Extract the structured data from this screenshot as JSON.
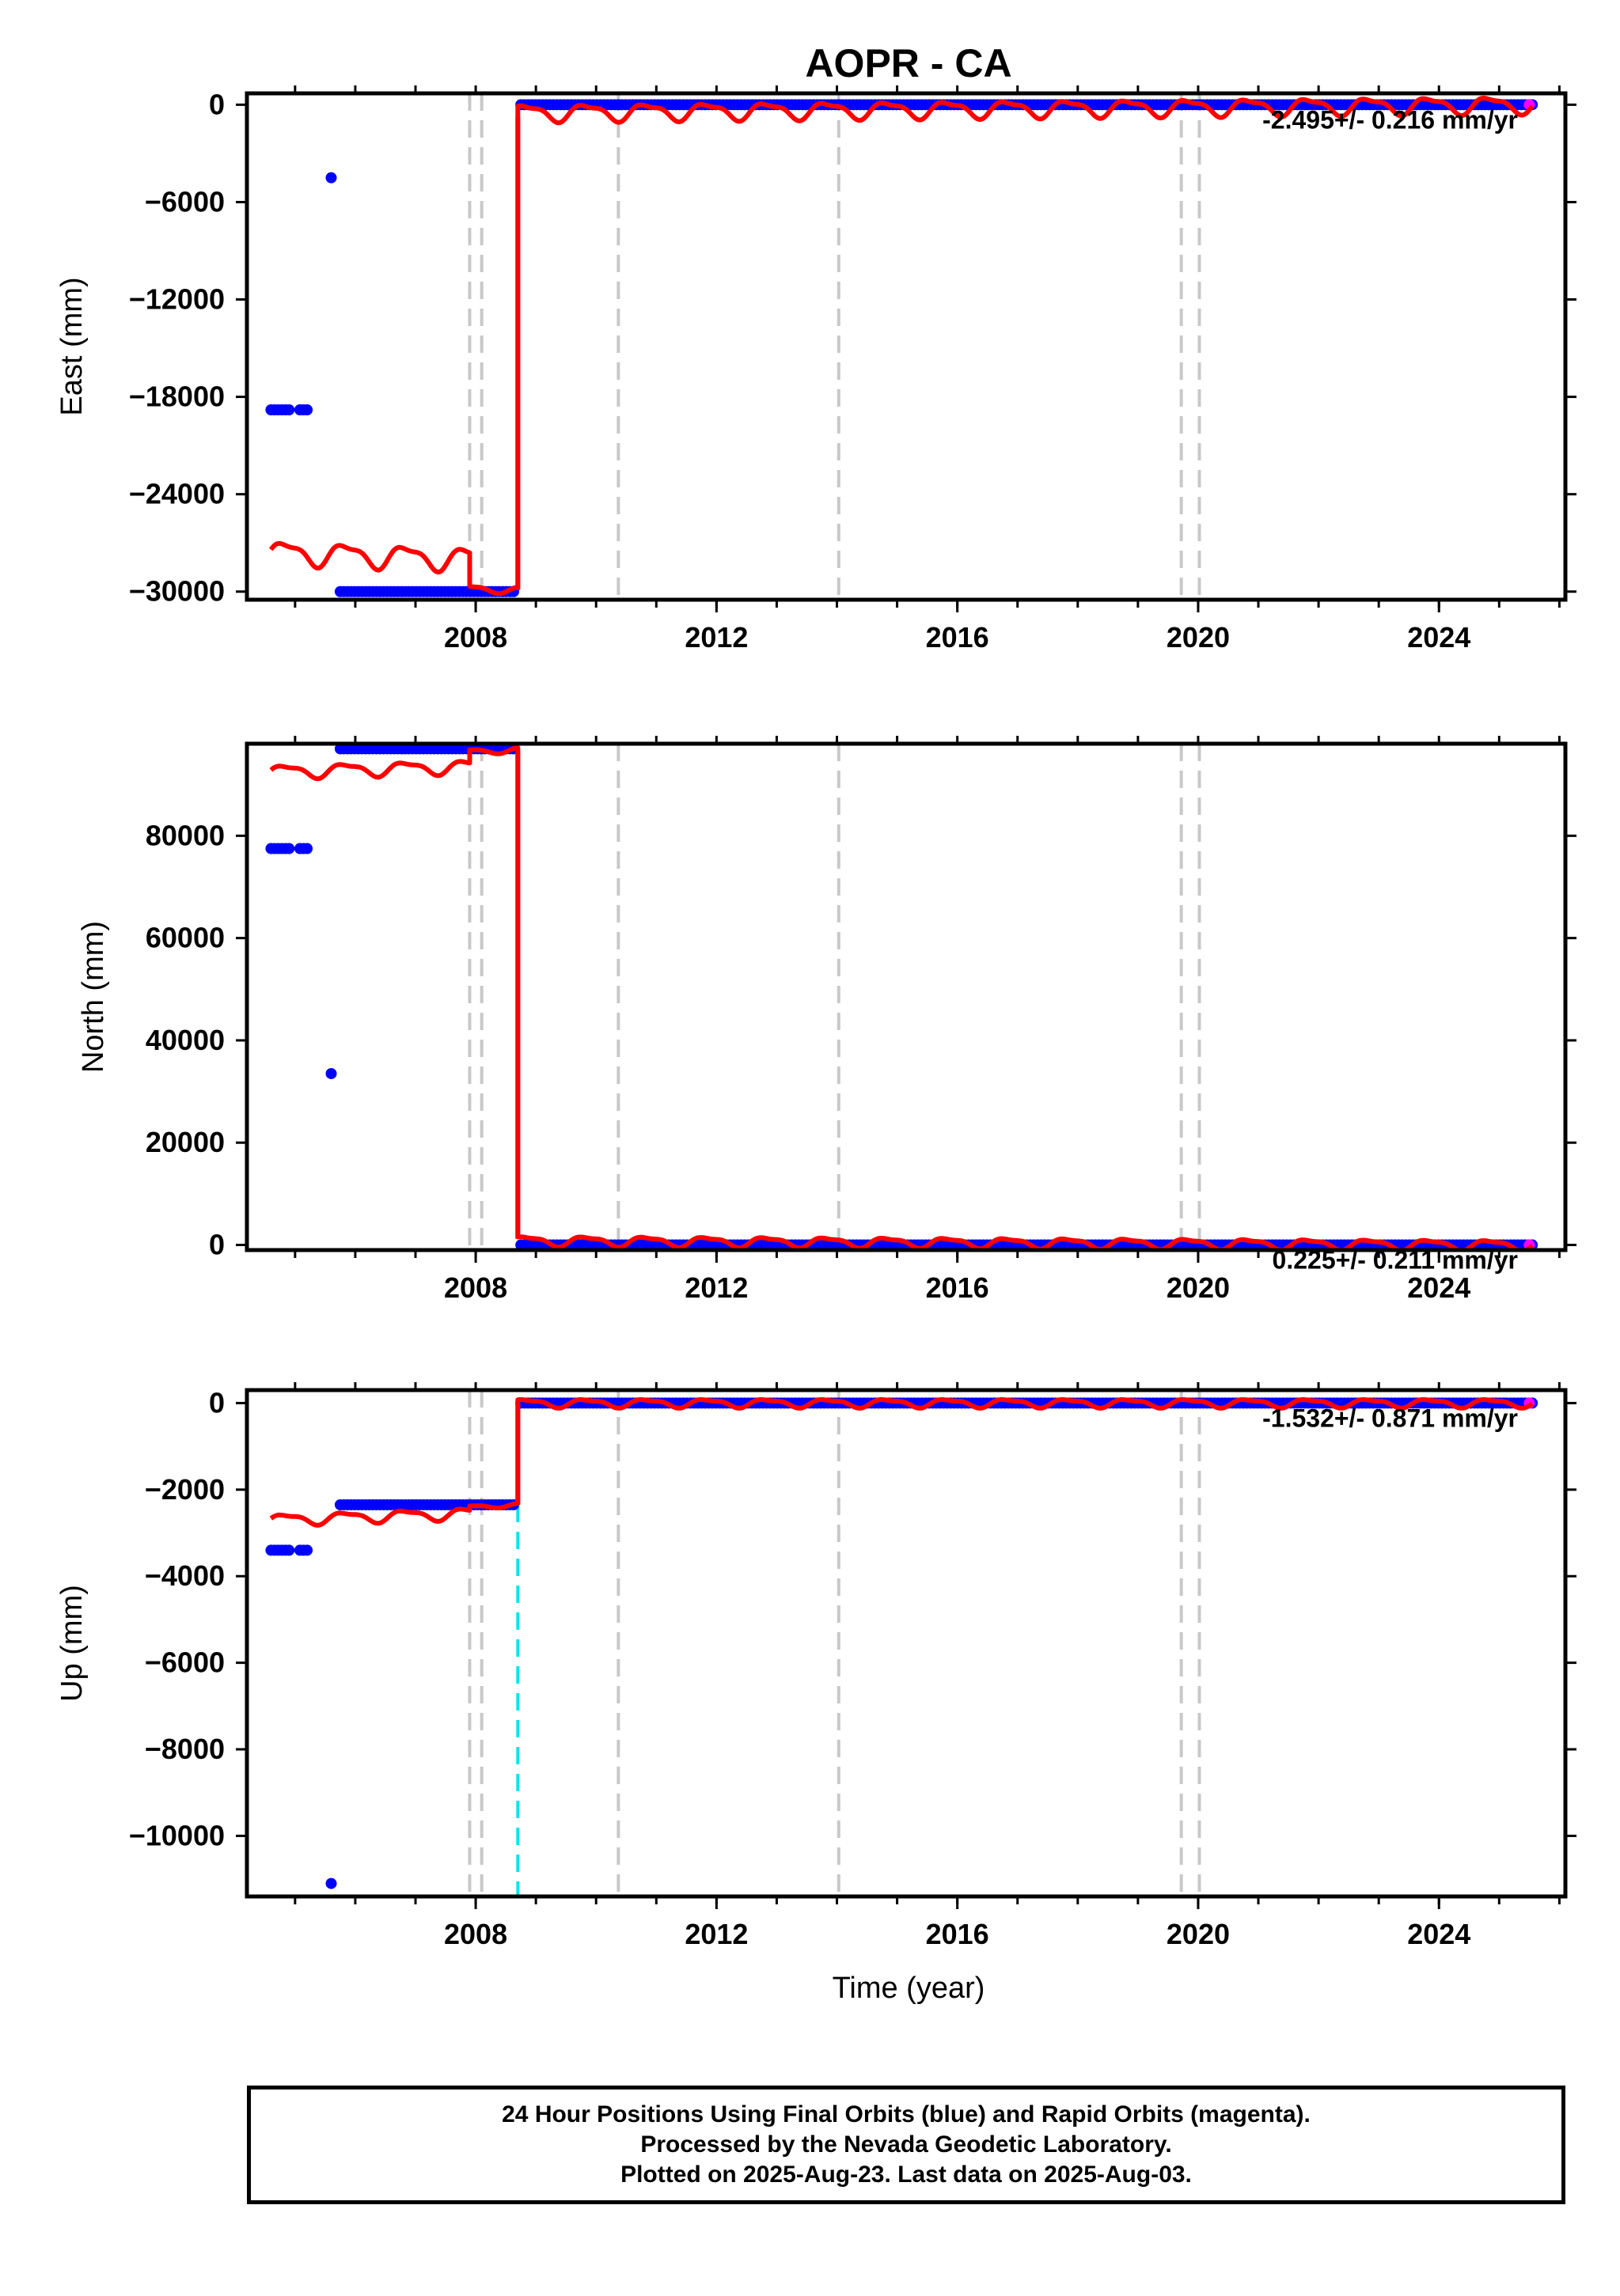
{
  "title": "AOPR - CA",
  "colors": {
    "final_orbits": "#0000ff",
    "rapid_orbits": "#ff00ff",
    "model": "#ff0000",
    "equipment_change": "#c8c8c8",
    "earthquake": "#00e5ee"
  },
  "x_axis": {
    "label": "Time (year)",
    "range": [
      2004.2,
      2026.1
    ],
    "tick_labels": [
      "2008",
      "2012",
      "2016",
      "2020",
      "2024"
    ],
    "tick_values": [
      2008,
      2012,
      2016,
      2020,
      2024
    ],
    "minor_step": 1
  },
  "vertical_lines": {
    "equipment_change_years": [
      2007.9,
      2008.1,
      2010.37,
      2014.03,
      2019.72,
      2020.02
    ],
    "earthquake_years": [
      2008.7
    ]
  },
  "caption": {
    "line1": "24 Hour Positions Using Final Orbits (blue) and Rapid Orbits (magenta).",
    "line2": "Processed by the Nevada Geodetic Laboratory.",
    "line3": "Plotted on 2025-Aug-23. Last data on 2025-Aug-03."
  },
  "chart_data": [
    {
      "type": "scatter",
      "name": "east",
      "ylabel": "East (mm)",
      "ylim": [
        -30500,
        700
      ],
      "tick_values": [
        0,
        -6000,
        -12000,
        -18000,
        -24000,
        -30000
      ],
      "tick_labels": [
        "0",
        "−6000",
        "−12000",
        "−18000",
        "−24000",
        "−30000"
      ],
      "rate_label": "-2.495+/- 0.216 mm/yr",
      "data_segments": [
        {
          "x": [
            2004.6,
            2005.25
          ],
          "y": -18800,
          "gaps": [
            [
              2004.95,
              2005.05
            ]
          ]
        },
        {
          "x": [
            2005.6,
            2005.6
          ],
          "y": -4500
        },
        {
          "x": [
            2005.75,
            2008.65
          ],
          "y": -30000
        },
        {
          "x": [
            2008.75,
            2025.55
          ],
          "y": 0
        }
      ],
      "rapid_points": [
        [
          2025.5,
          0
        ]
      ],
      "model": [
        {
          "x0": 2004.6,
          "x1": 2007.9,
          "y0": -27600,
          "y1": -28000,
          "amp": 650
        },
        {
          "x0": 2007.9,
          "x1": 2008.7,
          "y0": -29800,
          "y1": -29900,
          "amp": 200
        },
        {
          "x0": 2008.7,
          "x1": 2025.55,
          "y0": -500,
          "y1": 0,
          "amp": 480
        }
      ],
      "model_jumps": [
        [
          2008.7,
          -29900,
          -800
        ]
      ]
    },
    {
      "type": "scatter",
      "name": "north",
      "ylabel": "North (mm)",
      "ylim": [
        -1000,
        98000
      ],
      "tick_values": [
        0,
        20000,
        40000,
        60000,
        80000
      ],
      "tick_labels": [
        "0",
        "20000",
        "40000",
        "60000",
        "80000"
      ],
      "rate_label": "0.225+/- 0.211 mm/yr",
      "data_segments": [
        {
          "x": [
            2004.6,
            2005.25
          ],
          "y": 77500,
          "gaps": [
            [
              2004.95,
              2005.05
            ]
          ]
        },
        {
          "x": [
            2005.6,
            2005.6
          ],
          "y": 33500
        },
        {
          "x": [
            2005.75,
            2008.65
          ],
          "y": 97000
        },
        {
          "x": [
            2008.75,
            2025.55
          ],
          "y": 0
        }
      ],
      "rapid_points": [
        [
          2025.5,
          0
        ]
      ],
      "model": [
        {
          "x0": 2004.6,
          "x1": 2007.9,
          "y0": 92500,
          "y1": 93500,
          "amp": 1200
        },
        {
          "x0": 2007.9,
          "x1": 2008.7,
          "y0": 96500,
          "y1": 96800,
          "amp": 500
        },
        {
          "x0": 2008.7,
          "x1": 2025.55,
          "y0": 800,
          "y1": 0,
          "amp": 900
        }
      ],
      "model_jumps": [
        [
          2008.7,
          96800,
          1200
        ]
      ]
    },
    {
      "type": "scatter",
      "name": "up",
      "ylabel": "Up (mm)",
      "ylim": [
        -11400,
        300
      ],
      "tick_values": [
        0,
        -2000,
        -4000,
        -6000,
        -8000,
        -10000
      ],
      "tick_labels": [
        "0",
        "−2000",
        "−4000",
        "−6000",
        "−8000",
        "−10000"
      ],
      "rate_label": "-1.532+/- 0.871 mm/yr",
      "data_segments": [
        {
          "x": [
            2004.6,
            2005.25
          ],
          "y": -3400,
          "gaps": [
            [
              2004.95,
              2005.05
            ]
          ]
        },
        {
          "x": [
            2005.6,
            2005.6
          ],
          "y": -11100
        },
        {
          "x": [
            2005.75,
            2008.65
          ],
          "y": -2350
        },
        {
          "x": [
            2008.75,
            2025.55
          ],
          "y": 0
        }
      ],
      "rapid_points": [
        [
          2025.5,
          0
        ]
      ],
      "model": [
        {
          "x0": 2004.6,
          "x1": 2007.9,
          "y0": -2700,
          "y1": -2550,
          "amp": 120
        },
        {
          "x0": 2007.9,
          "x1": 2008.7,
          "y0": -2400,
          "y1": -2350,
          "amp": 40
        },
        {
          "x0": 2008.7,
          "x1": 2025.55,
          "y0": 0,
          "y1": 0,
          "amp": 90
        }
      ],
      "model_jumps": [
        [
          2008.7,
          -2350,
          0
        ]
      ]
    }
  ]
}
